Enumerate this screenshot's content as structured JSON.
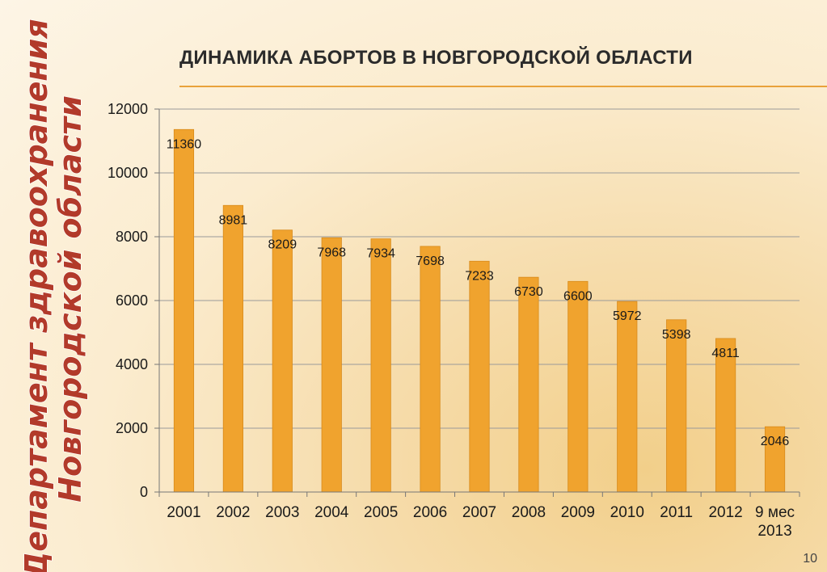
{
  "slide": {
    "side_text_line1": "Департамент здравоохранения",
    "side_text_line2": "Новгородской области",
    "page_number": "10"
  },
  "colors": {
    "bar": "#f0a32e",
    "bar_border": "#d88a1a",
    "accent_rule": "#e9a23a",
    "side_text_fill": "#b23a2a",
    "side_text_stroke": "#ffffff"
  },
  "chart_data": {
    "type": "bar",
    "title": "ДИНАМИКА АБОРТОВ В НОВГОРОДСКОЙ ОБЛАСТИ",
    "xlabel": "",
    "ylabel": "",
    "categories": [
      "2001",
      "2002",
      "2003",
      "2004",
      "2005",
      "2006",
      "2007",
      "2008",
      "2009",
      "2010",
      "2011",
      "2012",
      "9 мес 2013"
    ],
    "values": [
      11360,
      8981,
      8209,
      7968,
      7934,
      7698,
      7233,
      6730,
      6600,
      5972,
      5398,
      4811,
      2046
    ],
    "data_labels": [
      "11360",
      "8981",
      "8209",
      "7968",
      "7934",
      "7698",
      "7233",
      "6730",
      "6600",
      "5972",
      "5398",
      "4811",
      "2046"
    ],
    "ylim": [
      0,
      12000
    ],
    "yticks": [
      "0",
      "2000",
      "4000",
      "6000",
      "8000",
      "10000",
      "12000"
    ],
    "grid": true,
    "legend": "none"
  }
}
